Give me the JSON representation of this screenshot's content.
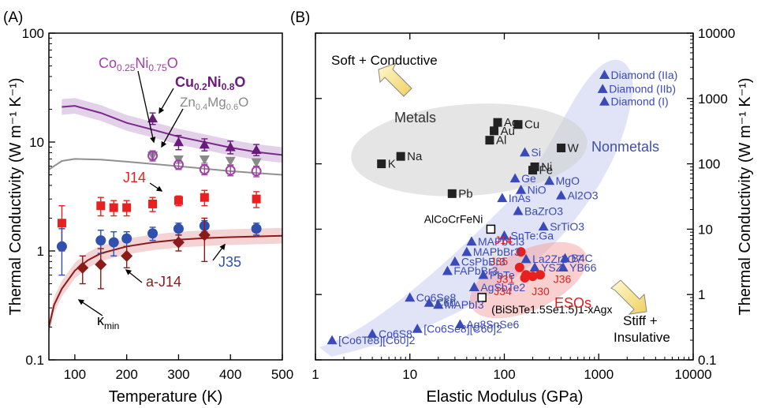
{
  "panels": {
    "a_label": "(A)",
    "b_label": "(B)"
  },
  "chart_data": [
    {
      "type": "scatter",
      "panel": "A",
      "xlabel": "Temperature (K)",
      "ylabel": "Thermal Conductivity (W m⁻¹ K⁻¹)",
      "xlim": [
        50,
        500
      ],
      "ylim": [
        0.1,
        100
      ],
      "yscale": "log",
      "xticks": [
        "100",
        "200",
        "300",
        "400",
        "500"
      ],
      "yticks": [
        "0.1",
        "1",
        "10",
        "100"
      ],
      "grid": false,
      "annotations": [
        {
          "id": "co",
          "text": "Co0.25Ni0.75O",
          "color": "#a040a8"
        },
        {
          "id": "cu",
          "text": "Cu0.2Ni0.8O",
          "color": "#6a1a7a"
        },
        {
          "id": "zn",
          "text": "Zn0.4Mg0.6O",
          "color": "#8a8a8a"
        },
        {
          "id": "j14",
          "text": "J14",
          "color": "#e82020"
        },
        {
          "id": "aj14",
          "text": "a-J14",
          "color": "#8b1a1a"
        },
        {
          "id": "j35",
          "text": "J35",
          "color": "#3050b0"
        },
        {
          "id": "kmin",
          "text": "κmin",
          "color": "#000000"
        }
      ],
      "series": [
        {
          "id": "cu",
          "color": "#6a1a7a",
          "marker": "triangle",
          "points": [
            [
              250,
              16.5
            ],
            [
              300,
              10
            ],
            [
              350,
              9.5
            ],
            [
              400,
              9
            ],
            [
              450,
              8.5
            ]
          ],
          "err": [
            2,
            1.5,
            1.2,
            1.2,
            1
          ]
        },
        {
          "id": "zn",
          "color": "#8a8a8a",
          "marker": "triangle-down",
          "points": [
            [
              250,
              7.5
            ],
            [
              300,
              6.9
            ],
            [
              350,
              6.9
            ],
            [
              400,
              6.7
            ],
            [
              450,
              6.5
            ]
          ],
          "err": [
            0.6,
            0.5,
            0.5,
            0.5,
            0.5
          ]
        },
        {
          "id": "co",
          "color": "#a040a8",
          "marker": "circle-open",
          "points": [
            [
              250,
              7.5
            ],
            [
              300,
              6.2
            ],
            [
              350,
              5.6
            ],
            [
              400,
              5.5
            ],
            [
              450,
              5.4
            ]
          ],
          "err": [
            0.8,
            0.6,
            0.6,
            0.6,
            0.6
          ]
        },
        {
          "id": "j14",
          "color": "#e82020",
          "marker": "square",
          "points": [
            [
              75,
              1.8
            ],
            [
              150,
              2.6
            ],
            [
              175,
              2.5
            ],
            [
              200,
              2.5
            ],
            [
              250,
              2.7
            ],
            [
              300,
              2.9
            ],
            [
              350,
              3.1
            ],
            [
              450,
              3.0
            ]
          ],
          "err": [
            0.8,
            0.5,
            0.4,
            0.4,
            0.4,
            0.3,
            0.5,
            0.5
          ]
        },
        {
          "id": "j35",
          "color": "#3050b0",
          "marker": "circle",
          "points": [
            [
              75,
              1.1
            ],
            [
              150,
              1.25
            ],
            [
              175,
              1.2
            ],
            [
              200,
              1.3
            ],
            [
              250,
              1.45
            ],
            [
              300,
              1.6
            ],
            [
              350,
              1.7
            ],
            [
              450,
              1.6
            ]
          ],
          "err": [
            0.5,
            0.3,
            0.3,
            0.2,
            0.2,
            0.2,
            0.2,
            0.2
          ]
        },
        {
          "id": "aj14",
          "color": "#8b1a1a",
          "marker": "diamond",
          "points": [
            [
              115,
              0.7
            ],
            [
              150,
              0.75
            ],
            [
              200,
              0.9
            ],
            [
              300,
              1.2
            ],
            [
              350,
              1.4
            ]
          ],
          "err": [
            0.2,
            0.3,
            0.2,
            0.2,
            0.6
          ]
        }
      ],
      "curves": [
        {
          "id": "cu_fit",
          "color": "#7a2a8a",
          "band": "#dcc4e4",
          "points": [
            [
              75,
              21
            ],
            [
              100,
              21.5
            ],
            [
              150,
              18.5
            ],
            [
              200,
              15
            ],
            [
              250,
              13
            ],
            [
              300,
              11.2
            ],
            [
              350,
              10
            ],
            [
              400,
              8.9
            ],
            [
              450,
              8.1
            ],
            [
              500,
              7.6
            ]
          ]
        },
        {
          "id": "zn_fit",
          "color": "#909090",
          "points": [
            [
              50,
              5.6
            ],
            [
              75,
              6.7
            ],
            [
              100,
              7
            ],
            [
              150,
              6.9
            ],
            [
              200,
              6.6
            ],
            [
              250,
              6.3
            ],
            [
              300,
              6
            ],
            [
              350,
              5.7
            ],
            [
              400,
              5.4
            ],
            [
              450,
              5.2
            ],
            [
              500,
              5
            ]
          ]
        },
        {
          "id": "kmin_fit",
          "color": "#8b1a1a",
          "band": "#f0c8c8",
          "points": [
            [
              50,
              0.2
            ],
            [
              60,
              0.32
            ],
            [
              75,
              0.45
            ],
            [
              100,
              0.66
            ],
            [
              125,
              0.82
            ],
            [
              150,
              0.95
            ],
            [
              200,
              1.1
            ],
            [
              250,
              1.2
            ],
            [
              300,
              1.27
            ],
            [
              350,
              1.31
            ],
            [
              400,
              1.34
            ],
            [
              450,
              1.36
            ],
            [
              500,
              1.38
            ]
          ]
        }
      ]
    },
    {
      "type": "scatter",
      "panel": "B",
      "xlabel": "Elastic Modulus (GPa)",
      "ylabel": "Thermal Conductivity (W m⁻¹ K⁻¹)",
      "xscale": "log",
      "yscale": "log",
      "xlim": [
        1,
        10000
      ],
      "ylim": [
        0.1,
        10000
      ],
      "xticks": [
        "1",
        "10",
        "100",
        "1000",
        "10000"
      ],
      "yticks": [
        "0.1",
        "1",
        "10",
        "100",
        "1000",
        "10000"
      ],
      "grid": false,
      "regions": [
        {
          "label": "Metals",
          "color": "#808080"
        },
        {
          "label": "Nonmetals",
          "color": "#4050a0"
        },
        {
          "label": "ESOs",
          "color": "#e02020"
        }
      ],
      "corner_labels": [
        "Soft + Conductive",
        "Stiff +",
        "Insulative"
      ],
      "metals": [
        {
          "label": "K",
          "x": 5,
          "y": 100
        },
        {
          "label": "Na",
          "x": 8,
          "y": 130
        },
        {
          "label": "Pb",
          "x": 28,
          "y": 35
        },
        {
          "label": "Ag",
          "x": 85,
          "y": 430
        },
        {
          "label": "Au",
          "x": 78,
          "y": 320
        },
        {
          "label": "Al",
          "x": 70,
          "y": 230
        },
        {
          "label": "Cu",
          "x": 140,
          "y": 400
        },
        {
          "label": "Fe",
          "x": 200,
          "y": 80
        },
        {
          "label": "Ni",
          "x": 210,
          "y": 90
        },
        {
          "label": "W",
          "x": 400,
          "y": 175
        }
      ],
      "nonmetals": [
        {
          "label": "Diamond (IIa)",
          "x": 1150,
          "y": 2300
        },
        {
          "label": "Diamond (IIb)",
          "x": 1100,
          "y": 1400
        },
        {
          "label": "Diamond (I)",
          "x": 1150,
          "y": 900
        },
        {
          "label": "Si",
          "x": 165,
          "y": 150
        },
        {
          "label": "Ge",
          "x": 130,
          "y": 60
        },
        {
          "label": "MgO",
          "x": 300,
          "y": 55
        },
        {
          "label": "NiO",
          "x": 150,
          "y": 40
        },
        {
          "label": "InAs",
          "x": 95,
          "y": 30
        },
        {
          "label": "Al2O3",
          "x": 400,
          "y": 33
        },
        {
          "label": "BaZrO3",
          "x": 140,
          "y": 19
        },
        {
          "label": "SrTiO3",
          "x": 260,
          "y": 11
        },
        {
          "label": "MAPbCl3",
          "x": 45,
          "y": 6.5
        },
        {
          "label": "MAPbBr3",
          "x": 40,
          "y": 4.5
        },
        {
          "label": "CsPbBr3",
          "x": 30,
          "y": 3.2
        },
        {
          "label": "FAPbBr3",
          "x": 25,
          "y": 2.3
        },
        {
          "label": "PbTe",
          "x": 60,
          "y": 2
        },
        {
          "label": "AgSbTe2",
          "x": 48,
          "y": 1.3
        },
        {
          "label": "YSZ",
          "x": 210,
          "y": 2.6
        },
        {
          "label": "B4C",
          "x": 440,
          "y": 3.6
        },
        {
          "label": "YB66",
          "x": 420,
          "y": 2.6
        },
        {
          "label": "La2Zr2O7",
          "x": 170,
          "y": 3.5
        },
        {
          "label": "C60",
          "x": 16,
          "y": 0.75
        },
        {
          "label": "Co6Se8",
          "x": 10,
          "y": 0.9
        },
        {
          "label": "MAPbI3",
          "x": 20,
          "y": 0.7
        },
        {
          "label": "[Co6Te8][C60]2",
          "x": 1.5,
          "y": 0.2
        },
        {
          "label": "Co6S8",
          "x": 4,
          "y": 0.25
        },
        {
          "label": "[Co6Se8][C60]2",
          "x": 12,
          "y": 0.3
        },
        {
          "label": "Ag8SnSe6",
          "x": 34,
          "y": 0.35
        },
        {
          "label": "SnTe:Ga",
          "x": 100,
          "y": 8
        }
      ],
      "open_squares": [
        {
          "label": "AlCoCrFeNi",
          "x": 72,
          "y": 10
        },
        {
          "label": "(BiSbTe1.5Se1.5)1-xAgx",
          "x": 58,
          "y": 0.9
        }
      ],
      "esos": [
        {
          "label": "J14",
          "x": 150,
          "y": 4.5
        },
        {
          "label": "J35",
          "x": 145,
          "y": 2.6
        },
        {
          "label": "J31",
          "x": 170,
          "y": 2.0
        },
        {
          "label": "J34",
          "x": 165,
          "y": 1.8
        },
        {
          "label": "J36",
          "x": 240,
          "y": 2.0
        },
        {
          "label": "J30",
          "x": 200,
          "y": 1.9
        }
      ]
    }
  ]
}
